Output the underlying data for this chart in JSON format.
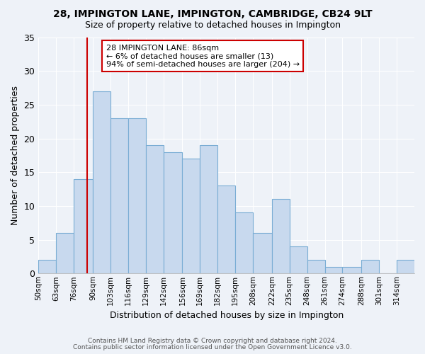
{
  "title1": "28, IMPINGTON LANE, IMPINGTON, CAMBRIDGE, CB24 9LT",
  "title2": "Size of property relative to detached houses in Impington",
  "xlabel": "Distribution of detached houses by size in Impington",
  "ylabel": "Number of detached properties",
  "bar_color": "#c8d9ee",
  "bar_edge_color": "#7aadd4",
  "bin_labels": [
    "50sqm",
    "63sqm",
    "76sqm",
    "90sqm",
    "103sqm",
    "116sqm",
    "129sqm",
    "142sqm",
    "156sqm",
    "169sqm",
    "182sqm",
    "195sqm",
    "208sqm",
    "222sqm",
    "235sqm",
    "248sqm",
    "261sqm",
    "274sqm",
    "288sqm",
    "301sqm",
    "314sqm"
  ],
  "counts": [
    2,
    6,
    14,
    27,
    23,
    23,
    19,
    18,
    17,
    19,
    13,
    9,
    6,
    11,
    4,
    2,
    1,
    1,
    2,
    0,
    2
  ],
  "bin_edges": [
    50,
    63,
    76,
    90,
    103,
    116,
    129,
    142,
    156,
    169,
    182,
    195,
    208,
    222,
    235,
    248,
    261,
    274,
    288,
    301,
    314,
    327
  ],
  "vline_x": 86,
  "vline_color": "#cc0000",
  "annotation_text": "28 IMPINGTON LANE: 86sqm\n← 6% of detached houses are smaller (13)\n94% of semi-detached houses are larger (204) →",
  "annotation_box_color": "#ffffff",
  "annotation_box_edge": "#cc0000",
  "ylim": [
    0,
    35
  ],
  "yticks": [
    0,
    5,
    10,
    15,
    20,
    25,
    30,
    35
  ],
  "background_color": "#eef2f8",
  "grid_color": "#ffffff",
  "footer1": "Contains HM Land Registry data © Crown copyright and database right 2024.",
  "footer2": "Contains public sector information licensed under the Open Government Licence v3.0."
}
